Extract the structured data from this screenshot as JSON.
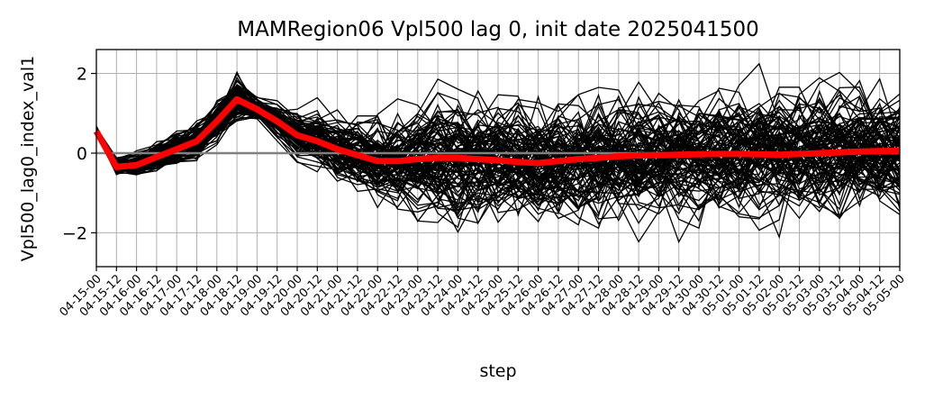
{
  "chart_data": {
    "type": "line",
    "title": "MAMRegion06 Vpl500 lag 0, init date 2025041500",
    "xlabel": "step",
    "ylabel": "Vpl500_lag0_index_val1",
    "ylim": [
      -2.85,
      2.6
    ],
    "yticks": [
      -2,
      0,
      2
    ],
    "grid": true,
    "x": [
      "04-15-00",
      "04-15-12",
      "04-16-00",
      "04-16-12",
      "04-17-00",
      "04-17-12",
      "04-18-00",
      "04-18-12",
      "04-19-00",
      "04-19-12",
      "04-20-00",
      "04-20-12",
      "04-21-00",
      "04-21-12",
      "04-22-00",
      "04-22-12",
      "04-23-00",
      "04-23-12",
      "04-24-00",
      "04-24-12",
      "04-25-00",
      "04-25-12",
      "04-26-00",
      "04-26-12",
      "04-27-00",
      "04-27-12",
      "04-28-00",
      "04-28-12",
      "04-29-00",
      "04-29-12",
      "04-30-00",
      "04-30-12",
      "05-01-00",
      "05-01-12",
      "05-02-00",
      "05-02-12",
      "05-03-00",
      "05-03-12",
      "05-04-00",
      "05-04-12",
      "05-05-00"
    ],
    "ensemble_members": 100,
    "ensemble_color": "#000000",
    "mean_series": {
      "color": "#ff0000",
      "values": [
        0.55,
        -0.35,
        -0.3,
        -0.1,
        0.1,
        0.3,
        0.8,
        1.35,
        1.1,
        0.8,
        0.45,
        0.3,
        0.1,
        -0.05,
        -0.2,
        -0.2,
        -0.15,
        -0.12,
        -0.12,
        -0.15,
        -0.18,
        -0.22,
        -0.25,
        -0.2,
        -0.15,
        -0.12,
        -0.08,
        -0.06,
        -0.05,
        -0.04,
        -0.03,
        -0.02,
        -0.02,
        -0.03,
        -0.04,
        -0.02,
        0.0,
        0.02,
        0.04,
        0.05,
        0.06
      ]
    },
    "zero_line_color": "#808080"
  }
}
